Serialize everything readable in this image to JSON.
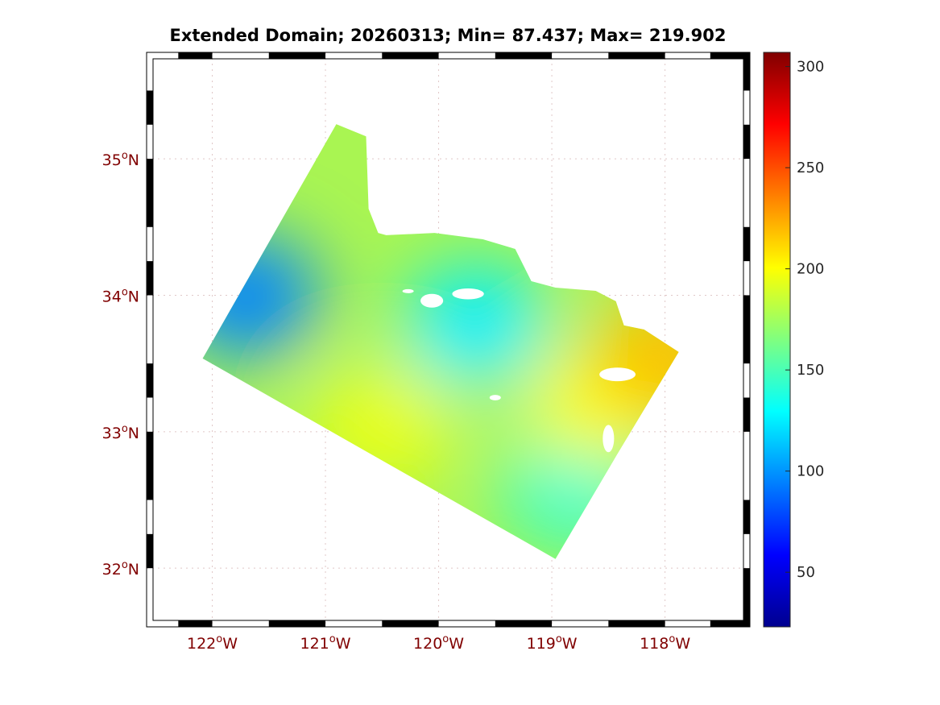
{
  "chart_data": {
    "type": "heatmap",
    "title": "Extended Domain; 20260313; Min= 87.437; Max= 219.902",
    "date": "20260313",
    "min": 87.437,
    "max": 219.902,
    "lon_range": [
      -122.58,
      -117.25
    ],
    "lat_range": [
      31.57,
      35.78
    ],
    "x_ticks": [
      {
        "value": -122,
        "label": "122",
        "suffix": "W"
      },
      {
        "value": -121,
        "label": "121",
        "suffix": "W"
      },
      {
        "value": -120,
        "label": "120",
        "suffix": "W"
      },
      {
        "value": -119,
        "label": "119",
        "suffix": "W"
      },
      {
        "value": -118,
        "label": "118",
        "suffix": "W"
      }
    ],
    "y_ticks": [
      {
        "value": 35,
        "label": "35",
        "suffix": "N"
      },
      {
        "value": 34,
        "label": "34",
        "suffix": "N"
      },
      {
        "value": 33,
        "label": "33",
        "suffix": "N"
      },
      {
        "value": 32,
        "label": "32",
        "suffix": "N"
      }
    ],
    "degree_symbol": "o",
    "grid": true,
    "colorbar": {
      "colormap": "jet",
      "range": [
        23,
        307
      ],
      "ticks": [
        "50",
        "100",
        "150",
        "200",
        "250",
        "300"
      ],
      "tick_values": [
        50,
        100,
        150,
        200,
        250,
        300
      ],
      "placement": "right"
    },
    "domain_polygon": [
      [
        -122.085,
        33.537
      ],
      [
        -120.904,
        35.254
      ],
      [
        -120.641,
        35.165
      ],
      [
        -120.619,
        34.634
      ],
      [
        -120.534,
        34.457
      ],
      [
        -120.463,
        34.44
      ],
      [
        -120.036,
        34.457
      ],
      [
        -119.609,
        34.41
      ],
      [
        -119.324,
        34.339
      ],
      [
        -119.181,
        34.103
      ],
      [
        -118.968,
        34.056
      ],
      [
        -118.612,
        34.032
      ],
      [
        -118.434,
        33.956
      ],
      [
        -118.363,
        33.779
      ],
      [
        -118.185,
        33.749
      ],
      [
        -117.879,
        33.584
      ],
      [
        -118.427,
        32.829
      ],
      [
        -118.968,
        32.068
      ]
    ],
    "field_features": [
      {
        "lon": -121.7,
        "lat": 33.99,
        "value": 95
      },
      {
        "lon": -119.67,
        "lat": 33.78,
        "value": 125
      },
      {
        "lon": -118.8,
        "lat": 32.6,
        "value": 140
      },
      {
        "lon": -120.5,
        "lat": 33.05,
        "value": 195
      },
      {
        "lon": -118.6,
        "lat": 33.2,
        "value": 200
      },
      {
        "lon": -118.0,
        "lat": 33.55,
        "value": 218
      }
    ],
    "islands": [
      {
        "lon": -120.27,
        "lat": 34.03,
        "rx": 0.05,
        "ry": 0.015
      },
      {
        "lon": -120.06,
        "lat": 33.96,
        "rx": 0.1,
        "ry": 0.05
      },
      {
        "lon": -119.74,
        "lat": 34.01,
        "rx": 0.14,
        "ry": 0.04
      },
      {
        "lon": -119.5,
        "lat": 33.25,
        "rx": 0.05,
        "ry": 0.02
      },
      {
        "lon": -118.42,
        "lat": 33.42,
        "rx": 0.16,
        "ry": 0.05
      },
      {
        "lon": -118.5,
        "lat": 32.95,
        "rx": 0.05,
        "ry": 0.1
      }
    ]
  }
}
